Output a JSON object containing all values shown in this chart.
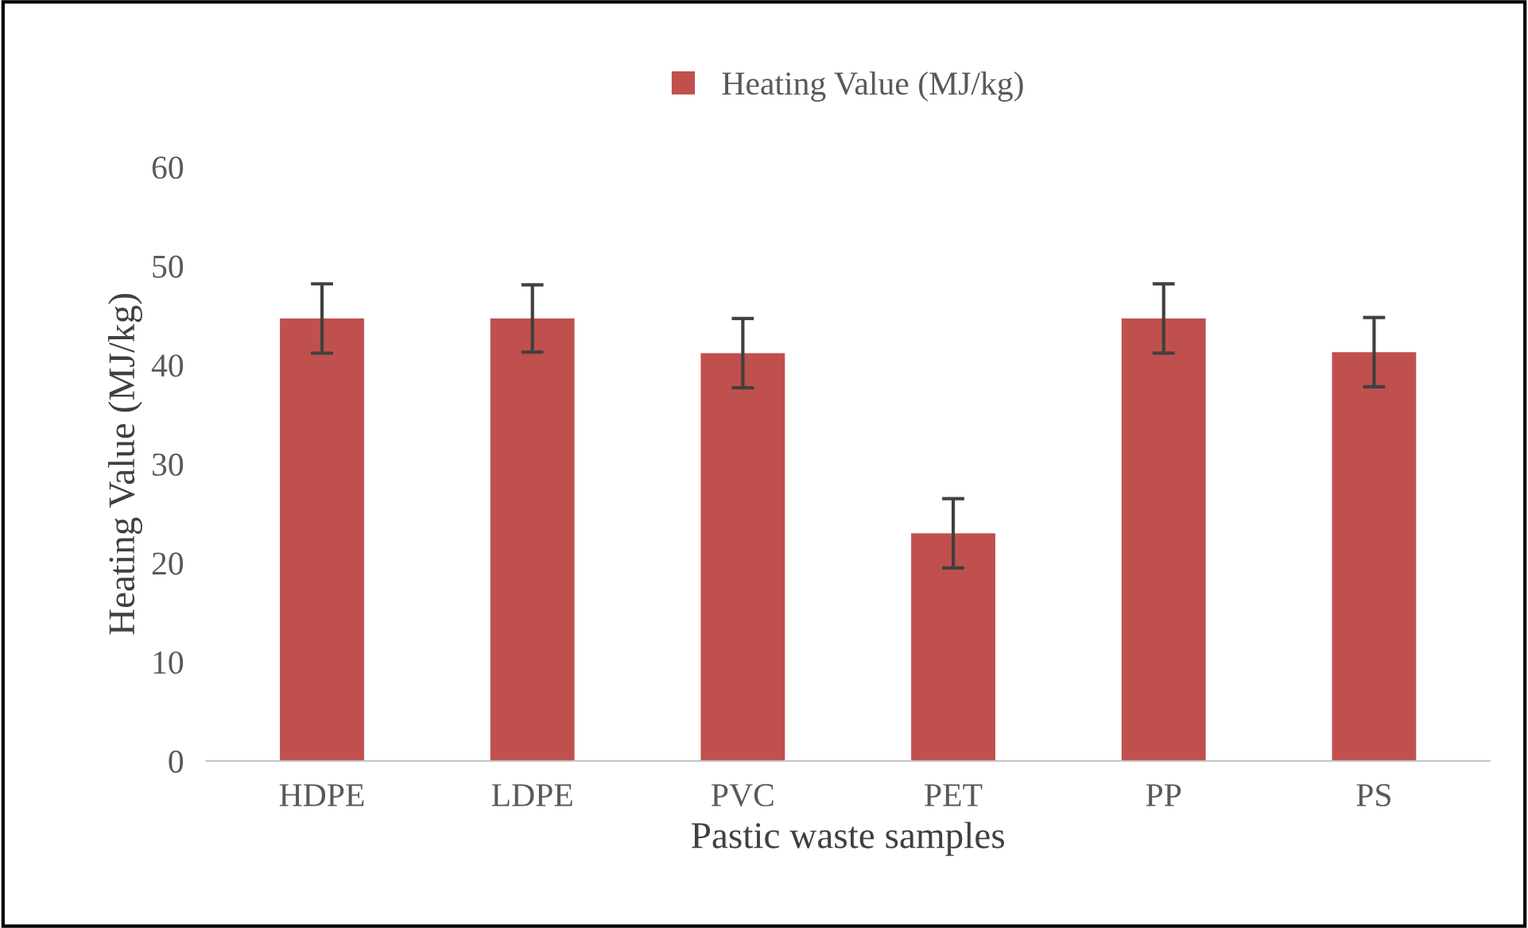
{
  "chart_data": {
    "type": "bar",
    "xlabel": "Pastic waste samples",
    "ylabel": "Heating Value (MJ/kg)",
    "categories": [
      "HDPE",
      "LDPE",
      "PVC",
      "PET",
      "PP",
      "PS"
    ],
    "series": [
      {
        "name": "Heating Value (MJ/kg)",
        "color": "#c0504d",
        "values": [
          44.7,
          44.7,
          41.2,
          23.0,
          44.7,
          41.3
        ],
        "errors": [
          3.5,
          3.4,
          3.5,
          3.5,
          3.5,
          3.5
        ]
      }
    ],
    "ylim": [
      0,
      60
    ],
    "yticks": [
      0,
      10,
      20,
      30,
      40,
      50,
      60
    ],
    "grid": false,
    "legend": "top"
  }
}
